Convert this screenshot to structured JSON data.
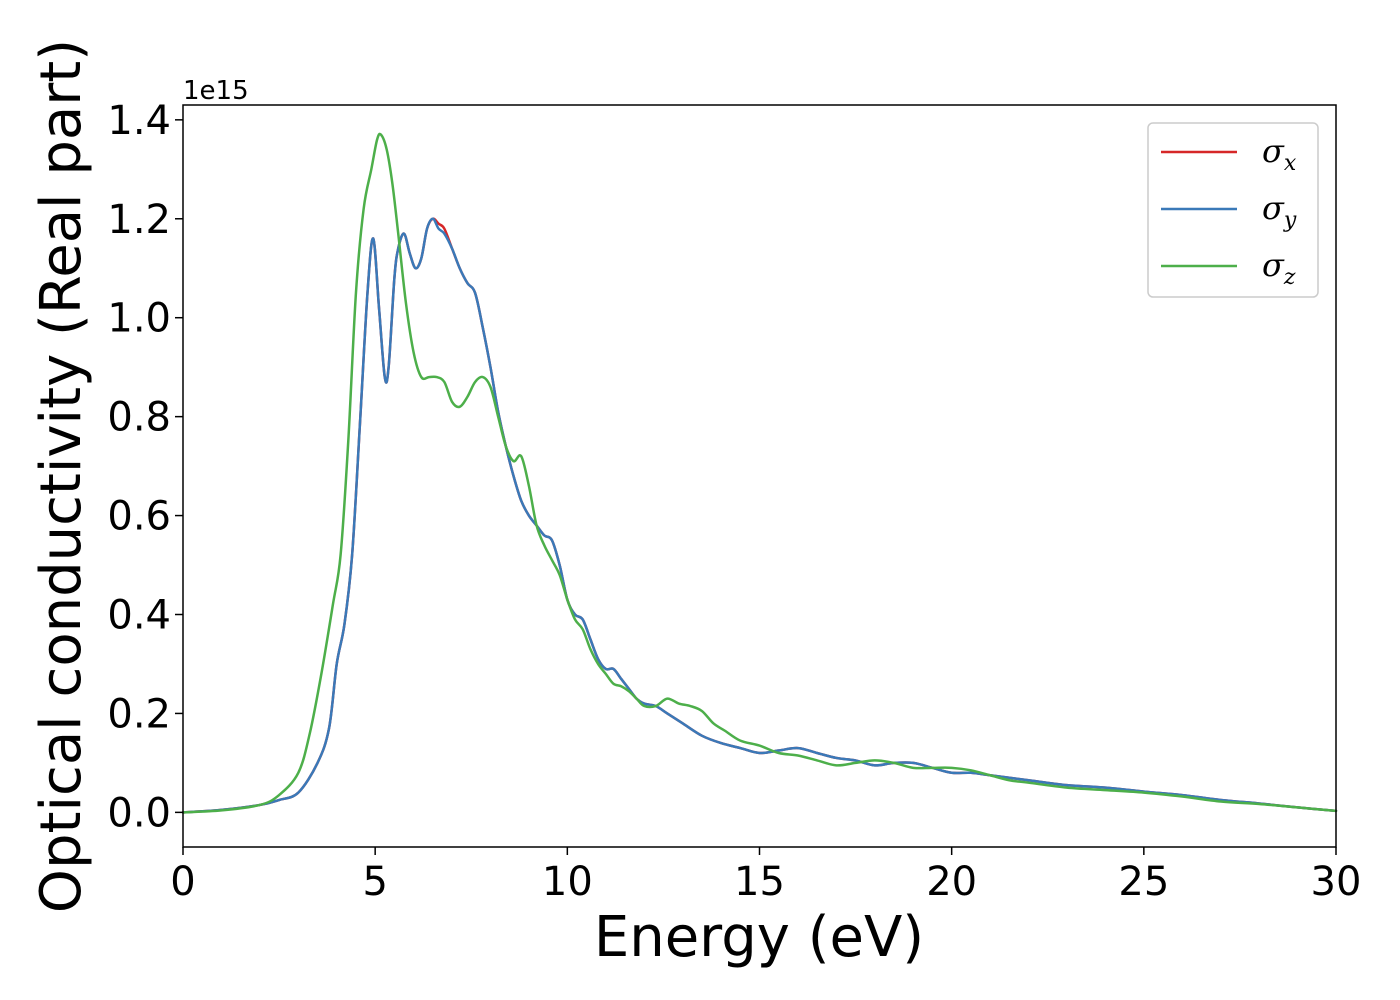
{
  "chart_data": {
    "type": "line",
    "xlabel": "Energy (eV)",
    "ylabel": "Optical conductivity (Real part)",
    "y_offset_text": "1e15",
    "xlim": [
      0,
      30
    ],
    "ylim": [
      -0.07,
      1.43
    ],
    "x_ticks": [
      0,
      5,
      10,
      15,
      20,
      25,
      30
    ],
    "x_tick_labels": [
      "0",
      "5",
      "10",
      "15",
      "20",
      "25",
      "30"
    ],
    "y_ticks": [
      0.0,
      0.2,
      0.4,
      0.6,
      0.8,
      1.0,
      1.2,
      1.4
    ],
    "y_tick_labels": [
      "0.0",
      "0.2",
      "0.4",
      "0.6",
      "0.8",
      "1.0",
      "1.2",
      "1.4"
    ],
    "grid": false,
    "legend_position": "top-right",
    "series": [
      {
        "name": "σ",
        "subscript": "x",
        "color": "#d62728",
        "x": [
          0,
          1,
          2,
          2.5,
          3,
          3.5,
          3.8,
          4.0,
          4.2,
          4.4,
          4.6,
          4.8,
          4.95,
          5.1,
          5.25,
          5.35,
          5.5,
          5.6,
          5.75,
          5.9,
          6.05,
          6.2,
          6.35,
          6.5,
          6.65,
          6.8,
          7.0,
          7.2,
          7.4,
          7.6,
          7.8,
          8.0,
          8.2,
          8.4,
          8.6,
          8.8,
          9.0,
          9.2,
          9.4,
          9.6,
          9.8,
          10.0,
          10.2,
          10.4,
          10.6,
          10.8,
          11.0,
          11.2,
          11.4,
          11.6,
          11.8,
          12.0,
          12.3,
          12.6,
          13.0,
          13.5,
          14.0,
          14.5,
          15.0,
          15.5,
          16.0,
          16.5,
          17.0,
          17.5,
          18.0,
          18.5,
          19.0,
          19.5,
          20.0,
          20.5,
          21.0,
          21.5,
          22.0,
          23.0,
          24.0,
          25.0,
          26.0,
          27.0,
          28.0,
          29.0,
          30.0
        ],
        "y": [
          0.0,
          0.005,
          0.015,
          0.025,
          0.04,
          0.1,
          0.17,
          0.3,
          0.38,
          0.52,
          0.78,
          1.05,
          1.16,
          1.02,
          0.88,
          0.9,
          1.08,
          1.14,
          1.17,
          1.13,
          1.1,
          1.12,
          1.18,
          1.2,
          1.19,
          1.18,
          1.14,
          1.1,
          1.07,
          1.05,
          0.98,
          0.9,
          0.81,
          0.74,
          0.68,
          0.63,
          0.6,
          0.58,
          0.56,
          0.55,
          0.5,
          0.43,
          0.4,
          0.39,
          0.35,
          0.31,
          0.29,
          0.29,
          0.27,
          0.25,
          0.23,
          0.22,
          0.215,
          0.2,
          0.18,
          0.155,
          0.14,
          0.13,
          0.12,
          0.125,
          0.13,
          0.12,
          0.11,
          0.105,
          0.095,
          0.1,
          0.1,
          0.09,
          0.08,
          0.08,
          0.075,
          0.07,
          0.065,
          0.055,
          0.05,
          0.042,
          0.035,
          0.025,
          0.018,
          0.01,
          0.003
        ]
      },
      {
        "name": "σ",
        "subscript": "y",
        "color": "#3a79b8",
        "x": [
          0,
          1,
          2,
          2.5,
          3,
          3.5,
          3.8,
          4.0,
          4.2,
          4.4,
          4.6,
          4.8,
          4.95,
          5.1,
          5.25,
          5.35,
          5.5,
          5.6,
          5.75,
          5.9,
          6.05,
          6.2,
          6.35,
          6.5,
          6.65,
          6.8,
          7.0,
          7.2,
          7.4,
          7.6,
          7.8,
          8.0,
          8.2,
          8.4,
          8.6,
          8.8,
          9.0,
          9.2,
          9.4,
          9.6,
          9.8,
          10.0,
          10.2,
          10.4,
          10.6,
          10.8,
          11.0,
          11.2,
          11.4,
          11.6,
          11.8,
          12.0,
          12.3,
          12.6,
          13.0,
          13.5,
          14.0,
          14.5,
          15.0,
          15.5,
          16.0,
          16.5,
          17.0,
          17.5,
          18.0,
          18.5,
          19.0,
          19.5,
          20.0,
          20.5,
          21.0,
          21.5,
          22.0,
          23.0,
          24.0,
          25.0,
          26.0,
          27.0,
          28.0,
          29.0,
          30.0
        ],
        "y": [
          0.0,
          0.005,
          0.015,
          0.025,
          0.04,
          0.1,
          0.17,
          0.3,
          0.38,
          0.52,
          0.78,
          1.05,
          1.16,
          1.02,
          0.88,
          0.9,
          1.08,
          1.14,
          1.17,
          1.13,
          1.1,
          1.12,
          1.18,
          1.2,
          1.18,
          1.17,
          1.14,
          1.1,
          1.07,
          1.05,
          0.98,
          0.9,
          0.81,
          0.74,
          0.68,
          0.63,
          0.6,
          0.58,
          0.56,
          0.55,
          0.5,
          0.43,
          0.4,
          0.39,
          0.35,
          0.31,
          0.29,
          0.29,
          0.27,
          0.25,
          0.23,
          0.22,
          0.215,
          0.2,
          0.18,
          0.155,
          0.14,
          0.13,
          0.12,
          0.125,
          0.13,
          0.12,
          0.11,
          0.105,
          0.095,
          0.1,
          0.1,
          0.09,
          0.08,
          0.08,
          0.075,
          0.07,
          0.065,
          0.055,
          0.05,
          0.042,
          0.035,
          0.025,
          0.018,
          0.01,
          0.003
        ]
      },
      {
        "name": "σ",
        "subscript": "z",
        "color": "#4daf4a",
        "x": [
          0,
          1,
          2,
          2.5,
          3,
          3.3,
          3.6,
          3.9,
          4.1,
          4.3,
          4.5,
          4.7,
          4.9,
          5.05,
          5.15,
          5.3,
          5.45,
          5.6,
          5.8,
          6.0,
          6.2,
          6.4,
          6.6,
          6.8,
          7.0,
          7.2,
          7.4,
          7.6,
          7.8,
          8.0,
          8.2,
          8.4,
          8.6,
          8.8,
          9.0,
          9.2,
          9.4,
          9.6,
          9.8,
          10.0,
          10.2,
          10.4,
          10.6,
          10.8,
          11.0,
          11.2,
          11.4,
          11.6,
          11.8,
          12.0,
          12.3,
          12.6,
          12.9,
          13.2,
          13.5,
          13.8,
          14.1,
          14.5,
          15.0,
          15.5,
          16.0,
          16.5,
          17.0,
          17.5,
          18.0,
          18.5,
          19.0,
          19.5,
          20.0,
          20.5,
          21.0,
          21.5,
          22.0,
          23.0,
          24.0,
          25.0,
          26.0,
          27.0,
          28.0,
          29.0,
          30.0
        ],
        "y": [
          0.0,
          0.004,
          0.015,
          0.035,
          0.08,
          0.16,
          0.28,
          0.42,
          0.52,
          0.75,
          1.05,
          1.22,
          1.3,
          1.36,
          1.37,
          1.34,
          1.27,
          1.17,
          1.03,
          0.93,
          0.88,
          0.88,
          0.88,
          0.87,
          0.83,
          0.82,
          0.84,
          0.87,
          0.88,
          0.86,
          0.8,
          0.74,
          0.71,
          0.72,
          0.66,
          0.58,
          0.54,
          0.51,
          0.48,
          0.43,
          0.39,
          0.37,
          0.33,
          0.3,
          0.28,
          0.26,
          0.255,
          0.245,
          0.23,
          0.215,
          0.215,
          0.23,
          0.22,
          0.215,
          0.205,
          0.18,
          0.165,
          0.145,
          0.135,
          0.12,
          0.115,
          0.105,
          0.095,
          0.1,
          0.105,
          0.1,
          0.09,
          0.09,
          0.09,
          0.085,
          0.075,
          0.065,
          0.06,
          0.05,
          0.045,
          0.04,
          0.032,
          0.022,
          0.017,
          0.01,
          0.003
        ]
      }
    ]
  }
}
